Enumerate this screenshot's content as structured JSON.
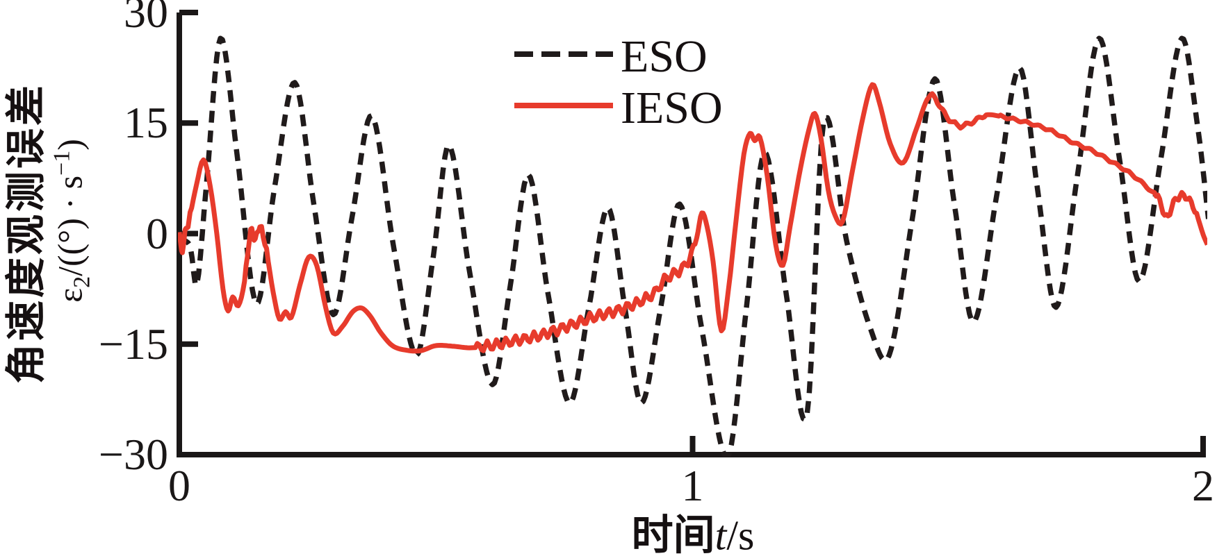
{
  "figure_type": "matlab-style line figure",
  "colors": {
    "background": "#ffffff",
    "axis": "#1a1717",
    "eso": "#201b1b",
    "ieso": "#e73b2c"
  },
  "chart_data": {
    "type": "line",
    "title": "",
    "xlabel_parts": [
      {
        "text": "时间",
        "style": "cjk"
      },
      {
        "text": "t",
        "style": "italic"
      },
      {
        "text": "/s",
        "style": "plain"
      }
    ],
    "ylabel_line1": "角速度观测误差",
    "ylabel_line2_parts": [
      {
        "text": "ε"
      },
      {
        "text": "2",
        "script": "sub"
      },
      {
        "text": "/((°) · s"
      },
      {
        "text": "−1",
        "script": "sup"
      },
      {
        "text": ")"
      }
    ],
    "xlim": [
      0,
      2
    ],
    "ylim": [
      -30,
      30
    ],
    "grid": false,
    "legend_position": "top-center-inside",
    "xticks": [
      {
        "v": 0,
        "label": "0"
      },
      {
        "v": 1,
        "label": "1"
      },
      {
        "v": 2,
        "label": "2"
      }
    ],
    "yticks": [
      {
        "v": 30,
        "label": "30"
      },
      {
        "v": 15,
        "label": "15"
      },
      {
        "v": 0,
        "label": "0"
      },
      {
        "v": -15,
        "label": "−15"
      },
      {
        "v": -30,
        "label": "−30"
      }
    ],
    "legend": [
      {
        "name": "ESO",
        "color": "#201b1b",
        "dash": true
      },
      {
        "name": "IESO",
        "color": "#e73b2c",
        "dash": false
      }
    ],
    "series": [
      {
        "name": "ESO",
        "color": "#201b1b",
        "width": 7.5,
        "dash": [
          17,
          11.5
        ],
        "points": [
          [
            0,
            -0.5
          ],
          [
            0.012,
            -1
          ],
          [
            0.022,
            -2
          ],
          [
            0.034,
            -7
          ],
          [
            0.052,
            6
          ],
          [
            0.08,
            26.5
          ],
          [
            0.112,
            11
          ],
          [
            0.15,
            -9.5
          ],
          [
            0.185,
            6
          ],
          [
            0.225,
            20.5
          ],
          [
            0.262,
            4
          ],
          [
            0.3,
            -11
          ],
          [
            0.336,
            2
          ],
          [
            0.375,
            16
          ],
          [
            0.418,
            -2
          ],
          [
            0.462,
            -16.5
          ],
          [
            0.495,
            -3
          ],
          [
            0.525,
            12
          ],
          [
            0.565,
            -5
          ],
          [
            0.61,
            -20.5
          ],
          [
            0.645,
            -7
          ],
          [
            0.68,
            8
          ],
          [
            0.718,
            -8
          ],
          [
            0.76,
            -23
          ],
          [
            0.798,
            -10
          ],
          [
            0.835,
            3.5
          ],
          [
            0.868,
            -10
          ],
          [
            0.9,
            -23
          ],
          [
            0.938,
            -10
          ],
          [
            0.975,
            4
          ],
          [
            1.018,
            -13
          ],
          [
            1.068,
            -30.3
          ],
          [
            1.105,
            -10
          ],
          [
            1.14,
            11
          ],
          [
            1.182,
            -8
          ],
          [
            1.223,
            -24.5
          ],
          [
            1.255,
            15
          ],
          [
            1.3,
            -1
          ],
          [
            1.347,
            -13
          ],
          [
            1.383,
            -16.5
          ],
          [
            1.428,
            2
          ],
          [
            1.472,
            21
          ],
          [
            1.51,
            4
          ],
          [
            1.547,
            -12
          ],
          [
            1.592,
            5
          ],
          [
            1.637,
            22.5
          ],
          [
            1.672,
            6
          ],
          [
            1.708,
            -10
          ],
          [
            1.75,
            8
          ],
          [
            1.792,
            26.5
          ],
          [
            1.832,
            10
          ],
          [
            1.87,
            -6.5
          ],
          [
            1.912,
            10
          ],
          [
            1.953,
            26.5
          ],
          [
            1.985,
            14
          ],
          [
            2.005,
            2
          ]
        ]
      },
      {
        "name": "IESO",
        "color": "#e73b2c",
        "width": 7,
        "dash": null,
        "points": [
          [
            0,
            -0.5
          ],
          [
            0.006,
            -2
          ],
          [
            0.013,
            0.5
          ],
          [
            0.021,
            2.5
          ],
          [
            0.033,
            6.5
          ],
          [
            0.047,
            10
          ],
          [
            0.06,
            6.5
          ],
          [
            0.073,
            0
          ],
          [
            0.085,
            -7.5
          ],
          [
            0.095,
            -10.5
          ],
          [
            0.104,
            -8.6
          ],
          [
            0.115,
            -9.8
          ],
          [
            0.127,
            -6.5
          ],
          [
            0.139,
            0.3
          ],
          [
            0.148,
            -0.8
          ],
          [
            0.157,
            1
          ],
          [
            0.17,
            -2.5
          ],
          [
            0.183,
            -8
          ],
          [
            0.195,
            -11.6
          ],
          [
            0.207,
            -10.6
          ],
          [
            0.218,
            -11.4
          ],
          [
            0.235,
            -7
          ],
          [
            0.252,
            -3.2
          ],
          [
            0.268,
            -4.4
          ],
          [
            0.285,
            -10
          ],
          [
            0.3,
            -13.5
          ],
          [
            0.318,
            -12.6
          ],
          [
            0.338,
            -10.6
          ],
          [
            0.355,
            -10.1
          ],
          [
            0.372,
            -11.2
          ],
          [
            0.392,
            -13.4
          ],
          [
            0.415,
            -15.2
          ],
          [
            0.44,
            -15.8
          ],
          [
            0.47,
            -15.9
          ],
          [
            0.5,
            -15.2
          ],
          [
            0.535,
            -15.3
          ],
          [
            0.565,
            -15.5
          ],
          [
            0.6,
            -15.3
          ],
          [
            0.632,
            -14.9
          ],
          [
            0.663,
            -14.4
          ],
          [
            0.695,
            -14
          ],
          [
            0.725,
            -13.3
          ],
          [
            0.755,
            -12.6
          ],
          [
            0.785,
            -11.9
          ],
          [
            0.815,
            -11.2
          ],
          [
            0.845,
            -10.6
          ],
          [
            0.875,
            -9.9
          ],
          [
            0.902,
            -9.1
          ],
          [
            0.926,
            -8
          ],
          [
            0.945,
            -6.3
          ],
          [
            0.963,
            -5.5
          ],
          [
            0.98,
            -4.7
          ],
          [
            0.995,
            -3.2
          ],
          [
            1.008,
            -0.6
          ],
          [
            1.018,
            2.8
          ],
          [
            1.028,
            1
          ],
          [
            1.04,
            -3.8
          ],
          [
            1.056,
            -13.2
          ],
          [
            1.07,
            -7.5
          ],
          [
            1.085,
            2
          ],
          [
            1.1,
            10.8
          ],
          [
            1.112,
            13.6
          ],
          [
            1.121,
            12.6
          ],
          [
            1.131,
            13.1
          ],
          [
            1.145,
            8
          ],
          [
            1.162,
            -1.5
          ],
          [
            1.176,
            -4.3
          ],
          [
            1.19,
            1
          ],
          [
            1.21,
            8.8
          ],
          [
            1.227,
            14.2
          ],
          [
            1.238,
            16.3
          ],
          [
            1.25,
            13
          ],
          [
            1.264,
            6
          ],
          [
            1.278,
            2.4
          ],
          [
            1.292,
            1.6
          ],
          [
            1.31,
            8
          ],
          [
            1.332,
            15.8
          ],
          [
            1.35,
            20.2
          ],
          [
            1.363,
            18
          ],
          [
            1.385,
            12.2
          ],
          [
            1.41,
            9.6
          ],
          [
            1.436,
            14.2
          ],
          [
            1.457,
            18.2
          ],
          [
            1.47,
            18.6
          ],
          [
            1.484,
            17
          ],
          [
            1.5,
            15.5
          ],
          [
            1.522,
            14.6
          ],
          [
            1.547,
            15.2
          ],
          [
            1.572,
            16.1
          ],
          [
            1.6,
            15.9
          ],
          [
            1.632,
            15.4
          ],
          [
            1.665,
            14.8
          ],
          [
            1.7,
            13.9
          ],
          [
            1.74,
            12.4
          ],
          [
            1.78,
            11.2
          ],
          [
            1.82,
            9.6
          ],
          [
            1.858,
            7.9
          ],
          [
            1.893,
            5.8
          ],
          [
            1.91,
            4.5
          ],
          [
            1.923,
            2.1
          ],
          [
            1.937,
            4.2
          ],
          [
            1.953,
            5.2
          ],
          [
            1.968,
            4.5
          ],
          [
            1.982,
            2.6
          ],
          [
            1.995,
            -0.2
          ],
          [
            2.003,
            -1.5
          ]
        ],
        "noise": [
          {
            "from": 0.0,
            "to": 0.022,
            "amp": 0.7,
            "freq": 90
          },
          {
            "from": 0.13,
            "to": 0.17,
            "amp": 0.5,
            "freq": 100
          },
          {
            "from": 0.58,
            "to": 1.005,
            "amp": 0.75,
            "freq": 55
          },
          {
            "from": 1.46,
            "to": 1.57,
            "amp": 0.3,
            "freq": 45
          },
          {
            "from": 1.6,
            "to": 1.9,
            "amp": 0.18,
            "freq": 40
          },
          {
            "from": 1.9,
            "to": 1.985,
            "amp": 0.5,
            "freq": 65
          }
        ]
      }
    ]
  }
}
